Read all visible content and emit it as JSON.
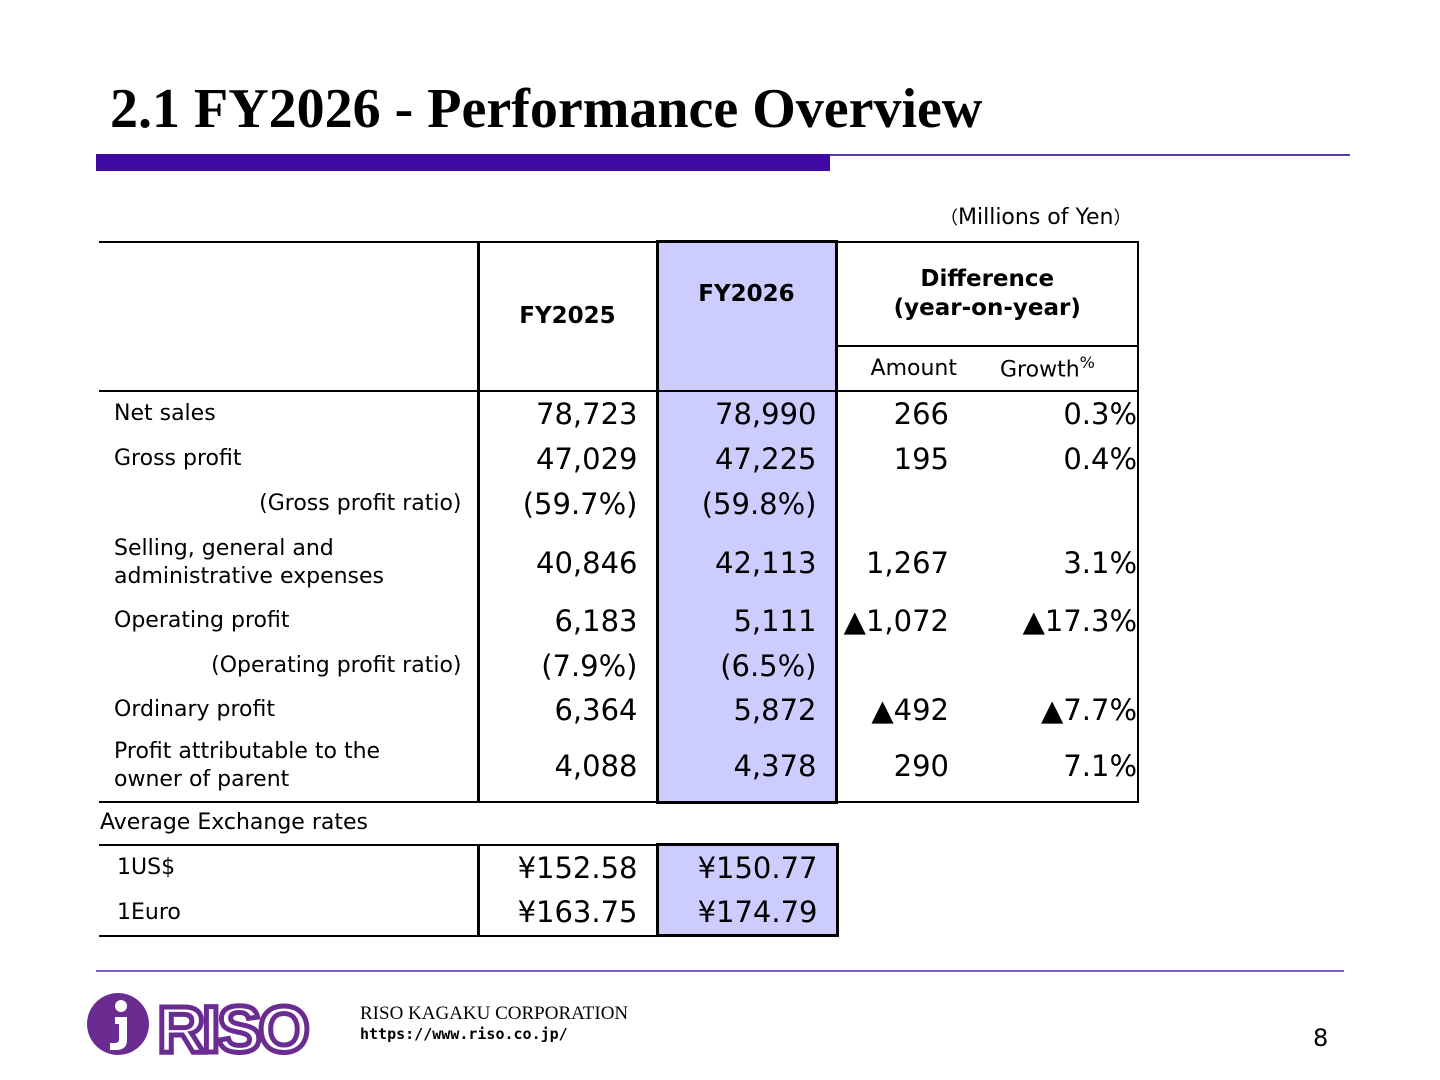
{
  "slide": {
    "title": "2.1 FY2026 - Performance Overview",
    "units": "Millions of Yen",
    "units_open": "（",
    "units_close": "）",
    "page_number": "8"
  },
  "table": {
    "headers": {
      "fy2025": "FY2025",
      "fy2026": "FY2026",
      "difference_line1": "Difference",
      "difference_line2": "(year-on-year)",
      "amount": "Amount",
      "growth": "Growth",
      "growth_symbol": "%"
    },
    "rows": [
      {
        "label": "Net sales",
        "fy2025": "78,723",
        "fy2026": "78,990",
        "amount": "266",
        "growth": "0.3%"
      },
      {
        "label": "Gross profit",
        "fy2025": "47,029",
        "fy2026": "47,225",
        "amount": "195",
        "growth": "0.4%"
      },
      {
        "label": "(Gross profit ratio)",
        "fy2025": "(59.7%)",
        "fy2026": "(59.8%)",
        "amount": "",
        "growth": ""
      },
      {
        "label_line1": "Selling, general and",
        "label_line2": "administrative expenses",
        "fy2025": "40,846",
        "fy2026": "42,113",
        "amount": "1,267",
        "growth": "3.1%"
      },
      {
        "label": "Operating profit",
        "fy2025": "6,183",
        "fy2026": "5,111",
        "amount": "▲1,072",
        "growth": "▲17.3%"
      },
      {
        "label": "(Operating profit ratio)",
        "fy2025": "(7.9%)",
        "fy2026": "(6.5%)",
        "amount": "",
        "growth": ""
      },
      {
        "label": "Ordinary profit",
        "fy2025": "6,364",
        "fy2026": "5,872",
        "amount": "▲492",
        "growth": "▲7.7%"
      },
      {
        "label_line1": "Profit attributable to the",
        "label_line2": "owner of parent",
        "fy2025": "4,088",
        "fy2026": "4,378",
        "amount": "290",
        "growth": "7.1%"
      }
    ]
  },
  "exchange": {
    "label": "Average Exchange rates",
    "rows": [
      {
        "label": "1US$",
        "fy2025": "¥152.58",
        "fy2026": "¥150.77"
      },
      {
        "label": "1Euro",
        "fy2025": "¥163.75",
        "fy2026": "¥174.79"
      }
    ]
  },
  "footer": {
    "company": "RISO KAGAKU CORPORATION",
    "url": "https://www.riso.co.jp/",
    "logo_text": "RISO"
  },
  "colors": {
    "accent": "#3f0aa3",
    "highlight": "#ccccff",
    "logo": "#6a2c91"
  }
}
